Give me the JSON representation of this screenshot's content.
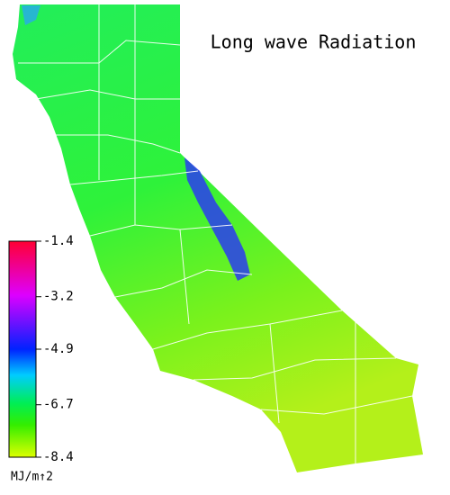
{
  "title": "Long wave Radiation",
  "colorbar": {
    "unit": "MJ/m↑2",
    "range": [
      -8.4,
      -1.4
    ],
    "ticks": [
      -1.4,
      -3.2,
      -4.9,
      -6.7,
      -8.4
    ]
  }
}
